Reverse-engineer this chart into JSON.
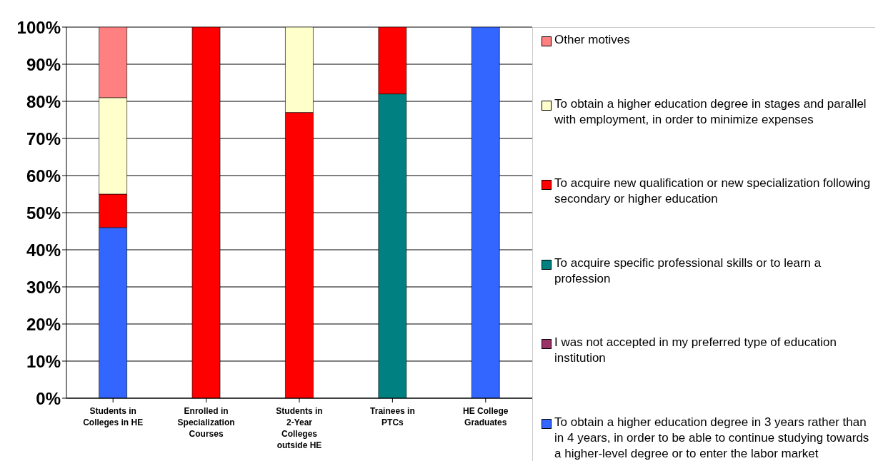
{
  "chart_data": {
    "type": "bar",
    "stacked": true,
    "categories": [
      "Students in Colleges in HE",
      "Enrolled in Specialization Courses",
      "Students in 2-Year Colleges outside HE",
      "Trainees in PTCs",
      "HE College Graduates"
    ],
    "series": [
      {
        "name": "To obtain a higher education degree in 3 years rather than in 4 years, in order to be able to continue studying towards a higher-level degree or to enter the labor market",
        "color": "#3366ff",
        "values": [
          46,
          0,
          0,
          0,
          100
        ]
      },
      {
        "name": "I was not accepted in my preferred type of education institution",
        "color": "#993366",
        "values": [
          0,
          0,
          0,
          0,
          0
        ]
      },
      {
        "name": "To acquire specific professional skills or to learn a profession",
        "color": "#008080",
        "values": [
          0,
          0,
          0,
          82,
          0
        ]
      },
      {
        "name": "To acquire new qualification or new specialization following secondary or higher education",
        "color": "#ff0000",
        "values": [
          9,
          100,
          77,
          18,
          0
        ]
      },
      {
        "name": "To obtain a higher education degree in stages and parallel with employment, in order to minimize expenses",
        "color": "#ffffcc",
        "values": [
          26,
          0,
          23,
          0,
          0
        ]
      },
      {
        "name": "Other motives",
        "color": "#ff8080",
        "values": [
          19,
          0,
          0,
          0,
          0
        ]
      }
    ],
    "ylim": [
      0,
      100
    ],
    "yticks": [
      {
        "value": 0,
        "label": "0%"
      },
      {
        "value": 10,
        "label": "10%"
      },
      {
        "value": 20,
        "label": "20%"
      },
      {
        "value": 30,
        "label": "30%"
      },
      {
        "value": 40,
        "label": "40%"
      },
      {
        "value": 50,
        "label": "50%"
      },
      {
        "value": 60,
        "label": "60%"
      },
      {
        "value": 70,
        "label": "70%"
      },
      {
        "value": 80,
        "label": "80%"
      },
      {
        "value": 90,
        "label": "90%"
      },
      {
        "value": 100,
        "label": "100%"
      }
    ],
    "grid": "y",
    "legend": "right"
  }
}
